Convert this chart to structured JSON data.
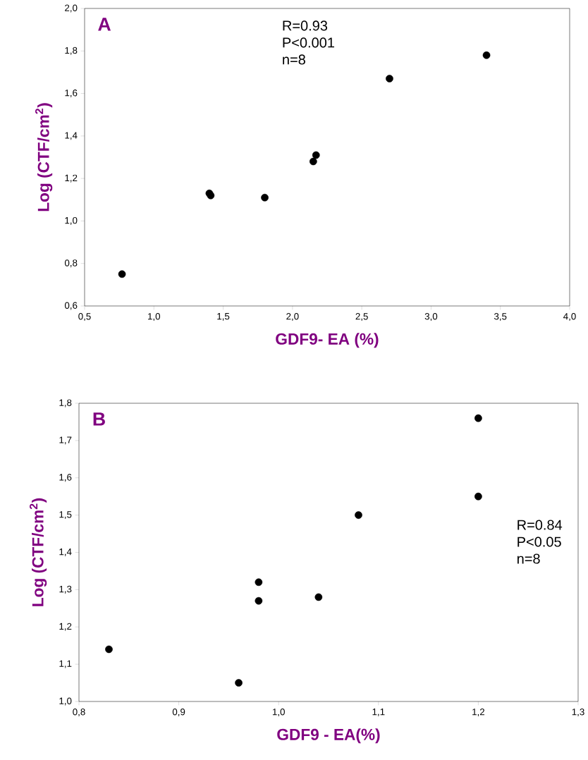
{
  "chart_data": [
    {
      "type": "scatter",
      "title": "A",
      "xlabel": "GDF9- EA (%)",
      "ylabel": "Log (CTF/cm$^{2}$)",
      "annotations": [
        "R=0.93",
        "P<0.001",
        "n=8"
      ],
      "grid": false,
      "series": [
        {
          "color": "#000000",
          "x": [
            0.77,
            1.4,
            1.41,
            1.8,
            2.15,
            2.17,
            2.7,
            3.4
          ],
          "values": [
            0.75,
            1.13,
            1.12,
            1.11,
            1.28,
            1.31,
            1.67,
            1.78
          ]
        }
      ],
      "xlim": [
        0.5,
        4.0
      ],
      "ylim": [
        0.6,
        2.0
      ],
      "xticks": [
        {
          "value": 0.5,
          "label": "0,5"
        },
        {
          "value": 1.0,
          "label": "1,0"
        },
        {
          "value": 1.5,
          "label": "1,5"
        },
        {
          "value": 2.0,
          "label": "2,0"
        },
        {
          "value": 2.5,
          "label": "2,5"
        },
        {
          "value": 3.0,
          "label": "3,0"
        },
        {
          "value": 3.5,
          "label": "3,5"
        },
        {
          "value": 4.0,
          "label": "4,0"
        }
      ],
      "yticks": [
        {
          "value": 0.6,
          "label": "0,6"
        },
        {
          "value": 0.8,
          "label": "0,8"
        },
        {
          "value": 1.0,
          "label": "1,0"
        },
        {
          "value": 1.2,
          "label": "1,2"
        },
        {
          "value": 1.4,
          "label": "1,4"
        },
        {
          "value": 1.6,
          "label": "1,6"
        },
        {
          "value": 1.8,
          "label": "1,8"
        },
        {
          "value": 2.0,
          "label": "2,0"
        }
      ]
    },
    {
      "type": "scatter",
      "title": "B",
      "xlabel": "GDF9 - EA(%)",
      "ylabel": "Log (CTF/cm$^{2}$)",
      "annotations": [
        "R=0.84",
        "P<0.05",
        "n=8"
      ],
      "grid": false,
      "series": [
        {
          "color": "#000000",
          "x": [
            0.83,
            0.96,
            0.98,
            0.98,
            1.04,
            1.08,
            1.2,
            1.2
          ],
          "values": [
            1.14,
            1.05,
            1.32,
            1.27,
            1.28,
            1.5,
            1.55,
            1.76
          ]
        }
      ],
      "xlim": [
        0.8,
        1.3
      ],
      "ylim": [
        1.0,
        1.8
      ],
      "xticks": [
        {
          "value": 0.8,
          "label": "0,8"
        },
        {
          "value": 0.9,
          "label": "0,9"
        },
        {
          "value": 1.0,
          "label": "1,0"
        },
        {
          "value": 1.1,
          "label": "1,1"
        },
        {
          "value": 1.2,
          "label": "1,2"
        },
        {
          "value": 1.3,
          "label": "1,3"
        }
      ],
      "yticks": [
        {
          "value": 1.0,
          "label": "1,0"
        },
        {
          "value": 1.1,
          "label": "1,1"
        },
        {
          "value": 1.2,
          "label": "1,2"
        },
        {
          "value": 1.3,
          "label": "1,3"
        },
        {
          "value": 1.4,
          "label": "1,4"
        },
        {
          "value": 1.5,
          "label": "1,5"
        },
        {
          "value": 1.6,
          "label": "1,6"
        },
        {
          "value": 1.7,
          "label": "1,7"
        },
        {
          "value": 1.8,
          "label": "1,8"
        }
      ]
    }
  ]
}
